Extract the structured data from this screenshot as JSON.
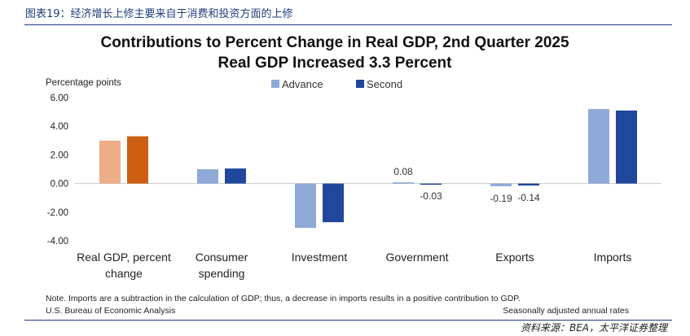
{
  "figure_caption": "图表19：经济增长上修主要来自于消费和投资方面的上修",
  "source": "资料来源：BEA，太平洋证券整理",
  "chart_data": {
    "type": "bar",
    "title": "Contributions to Percent Change in Real GDP, 2nd Quarter 2025",
    "subtitle": "Real GDP Increased 3.3 Percent",
    "ylabel": "Percentage points",
    "ylim": [
      -4,
      6
    ],
    "yticks": [
      "6.00",
      "4.00",
      "2.00",
      "0.00",
      "-2.00",
      "-4.00"
    ],
    "ytick_values": [
      6,
      4,
      2,
      0,
      -2,
      -4
    ],
    "grid": false,
    "legend_position": "top",
    "categories": [
      "Real GDP, percent change",
      "Consumer spending",
      "Investment",
      "Government",
      "Exports",
      "Imports"
    ],
    "category_lines": [
      [
        "Real GDP, percent",
        "change"
      ],
      [
        "Consumer",
        "spending"
      ],
      [
        "Investment"
      ],
      [
        "Government"
      ],
      [
        "Exports"
      ],
      [
        "Imports"
      ]
    ],
    "series": [
      {
        "name": "Advance",
        "color": "#8faad6",
        "highlight_color": "#ecae88",
        "values": [
          3.0,
          1.0,
          -3.1,
          0.08,
          -0.19,
          5.2
        ]
      },
      {
        "name": "Second",
        "color": "#21479c",
        "highlight_color": "#cc5f12",
        "values": [
          3.3,
          1.05,
          -2.7,
          -0.03,
          -0.14,
          5.1
        ]
      }
    ],
    "highlight_category_index": 0,
    "data_labels": [
      {
        "text": "0.08",
        "category_index": 3,
        "series_index": 0
      },
      {
        "text": "-0.03",
        "category_index": 3,
        "series_index": 1
      },
      {
        "text": "-0.19",
        "category_index": 4,
        "series_index": 0
      },
      {
        "text": "-0.14",
        "category_index": 4,
        "series_index": 1
      }
    ],
    "notes": [
      "Note. Imports are a subtraction in the calculation of GDP; thus, a decrease in imports results in a positive contribution to GDP.",
      "U.S. Bureau of Economic Analysis"
    ],
    "notes_right": "Seasonally adjusted annual rates"
  }
}
